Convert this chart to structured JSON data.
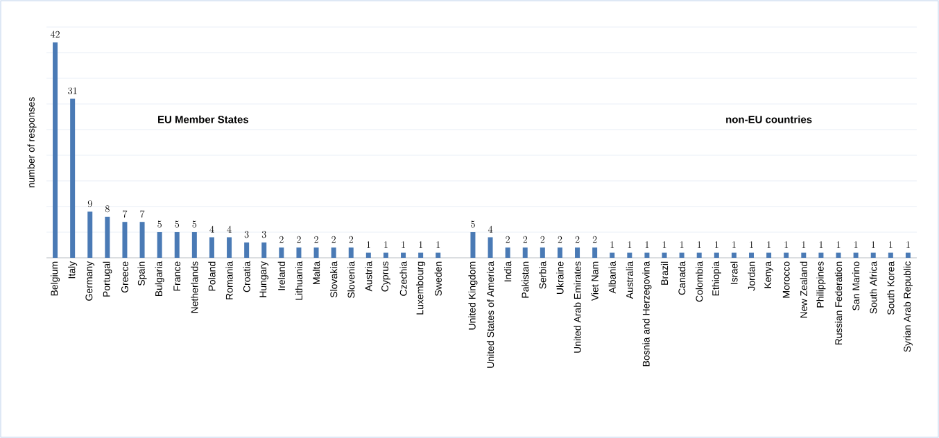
{
  "chart_data": {
    "type": "bar",
    "ylabel": "number of responses",
    "categories": [
      "Belgium",
      "Italy",
      "Germany",
      "Portugal",
      "Greece",
      "Spain",
      "Bulgaria",
      "France",
      "Netherlands",
      "Poland",
      "Romania",
      "Croatia",
      "Hungary",
      "Ireland",
      "Lithuania",
      "Malta",
      "Slovakia",
      "Slovenia",
      "Austria",
      "Cyprus",
      "Czechia",
      "Luxembourg",
      "Sweden",
      null,
      "United Kingdom",
      "United States of America",
      "India",
      "Pakistan",
      "Serbia",
      "Ukraine",
      "United Arab Emirates",
      "Viet Nam",
      "Albania",
      "Australia",
      "Bosnia and Herzegovina",
      "Brazil",
      "Canada",
      "Colombia",
      "Ethiopia",
      "Israel",
      "Jordan",
      "Kenya",
      "Morocco",
      "New Zealand",
      "Philippines",
      "Russian Federation",
      "San Marino",
      "South Africa",
      "South Korea",
      "Syrian Arab Republic"
    ],
    "values": [
      42,
      31,
      9,
      8,
      7,
      7,
      5,
      5,
      5,
      4,
      4,
      3,
      3,
      2,
      2,
      2,
      2,
      2,
      1,
      1,
      1,
      1,
      1,
      null,
      5,
      4,
      2,
      2,
      2,
      2,
      2,
      2,
      1,
      1,
      1,
      1,
      1,
      1,
      1,
      1,
      1,
      1,
      1,
      1,
      1,
      1,
      1,
      1,
      1,
      1
    ],
    "color": "#4a7ab5",
    "data_labels": true,
    "ylim": [
      0,
      45
    ],
    "yticks": [
      {
        "value": 0,
        "label": null
      },
      {
        "value": 5,
        "label": null
      },
      {
        "value": 10,
        "label": null
      },
      {
        "value": 15,
        "label": null
      },
      {
        "value": 20,
        "label": null
      },
      {
        "value": 25,
        "label": null
      },
      {
        "value": 30,
        "label": null
      },
      {
        "value": 35,
        "label": null
      },
      {
        "value": 40,
        "label": null
      },
      {
        "value": 45,
        "label": null
      }
    ],
    "tick_labels": "x",
    "grid": "y",
    "annotations": [
      "EU Member States",
      "non-EU countries"
    ]
  }
}
